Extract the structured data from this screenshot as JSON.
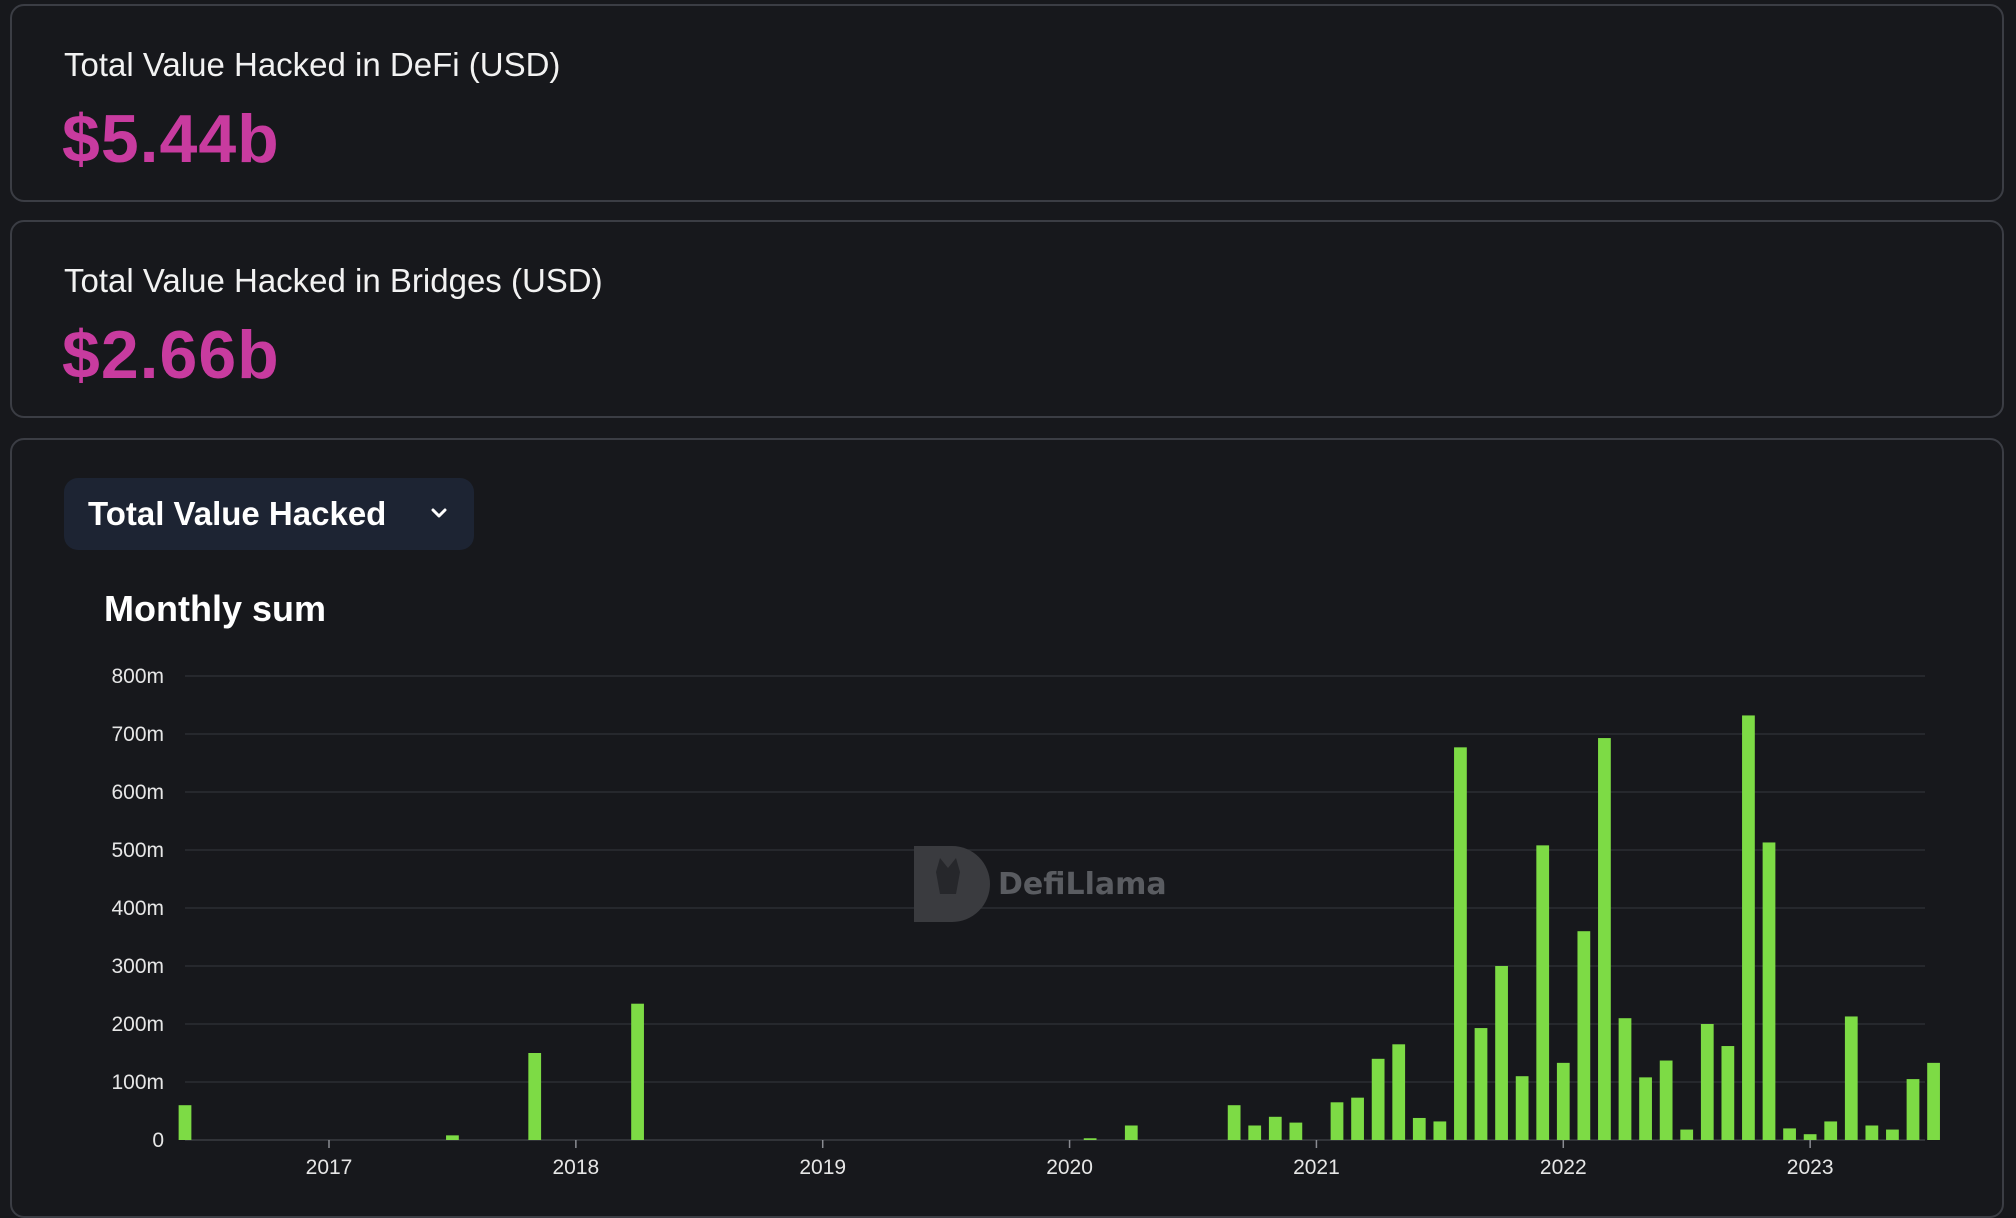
{
  "stats": {
    "defi_label": "Total Value Hacked in DeFi (USD)",
    "defi_value": "$5.44b",
    "bridges_label": "Total Value Hacked in Bridges (USD)",
    "bridges_value": "$2.66b"
  },
  "selector": {
    "selected": "Total Value Hacked"
  },
  "watermark": "DefiLlama",
  "colors": {
    "accent": "#c83b9f",
    "bar": "#7ddb45",
    "grid": "#2c2e33"
  },
  "chart_data": {
    "type": "bar",
    "title": "Monthly sum",
    "xlabel": "",
    "ylabel": "",
    "ylim": [
      0,
      800000000
    ],
    "y_ticks": [
      "0",
      "100m",
      "200m",
      "300m",
      "400m",
      "500m",
      "600m",
      "700m",
      "800m"
    ],
    "x_ticks": [
      "2017",
      "2018",
      "2019",
      "2020",
      "2021",
      "2022",
      "2023"
    ],
    "xlim": [
      "2016-06",
      "2023-06"
    ],
    "x": [
      "2016-06",
      "2017-07",
      "2017-11",
      "2018-04",
      "2020-02",
      "2020-04",
      "2020-09",
      "2020-10",
      "2020-11",
      "2020-12",
      "2021-02",
      "2021-03",
      "2021-04",
      "2021-05",
      "2021-06",
      "2021-07",
      "2021-08",
      "2021-09",
      "2021-10",
      "2021-11",
      "2021-12",
      "2022-01",
      "2022-02",
      "2022-03",
      "2022-04",
      "2022-05",
      "2022-06",
      "2022-07",
      "2022-08",
      "2022-09",
      "2022-10",
      "2022-11",
      "2022-12",
      "2023-01",
      "2023-02",
      "2023-03",
      "2023-04",
      "2023-05",
      "2023-06",
      "2023-07"
    ],
    "values": [
      60000000,
      8000000,
      150000000,
      235000000,
      3000000,
      25000000,
      60000000,
      25000000,
      40000000,
      30000000,
      65000000,
      73000000,
      140000000,
      165000000,
      38000000,
      32000000,
      677000000,
      193000000,
      300000000,
      110000000,
      508000000,
      133000000,
      360000000,
      693000000,
      210000000,
      108000000,
      137000000,
      18000000,
      200000000,
      162000000,
      732000000,
      513000000,
      20000000,
      10000000,
      32000000,
      213000000,
      25000000,
      18000000,
      105000000,
      133000000
    ]
  }
}
